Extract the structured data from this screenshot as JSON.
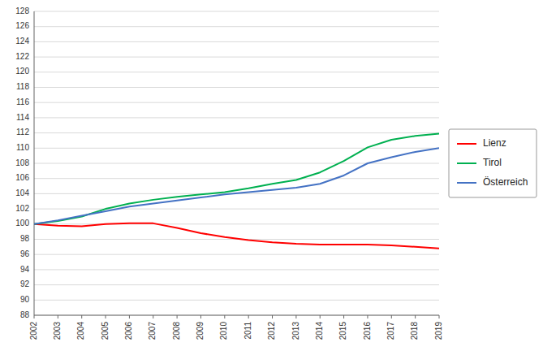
{
  "chart_data": {
    "type": "line",
    "x": [
      2002,
      2003,
      2004,
      2005,
      2006,
      2007,
      2008,
      2009,
      2010,
      2011,
      2012,
      2013,
      2014,
      2015,
      2016,
      2017,
      2018,
      2019
    ],
    "series": [
      {
        "name": "Lienz",
        "color": "#ff0000",
        "values": [
          100.0,
          99.8,
          99.7,
          100.0,
          100.1,
          100.1,
          99.5,
          98.8,
          98.3,
          97.9,
          97.6,
          97.4,
          97.3,
          97.3,
          97.3,
          97.2,
          97.0,
          96.8
        ]
      },
      {
        "name": "Tirol",
        "color": "#00b050",
        "values": [
          100.0,
          100.4,
          101.0,
          102.0,
          102.7,
          103.2,
          103.6,
          103.9,
          104.2,
          104.7,
          105.3,
          105.8,
          106.8,
          108.3,
          110.1,
          111.1,
          111.6,
          111.9
        ]
      },
      {
        "name": "Österreich",
        "color": "#4472c4",
        "values": [
          100.0,
          100.5,
          101.1,
          101.7,
          102.3,
          102.7,
          103.1,
          103.5,
          103.9,
          104.2,
          104.5,
          104.8,
          105.3,
          106.4,
          108.0,
          108.8,
          109.5,
          110.0
        ]
      }
    ],
    "xlim": [
      2002,
      2019
    ],
    "xticks": [
      2002,
      2003,
      2004,
      2005,
      2006,
      2007,
      2008,
      2009,
      2010,
      2011,
      2012,
      2013,
      2014,
      2015,
      2016,
      2017,
      2018,
      2019
    ],
    "ylim": [
      88,
      128
    ],
    "yticks": [
      88,
      90,
      92,
      94,
      96,
      98,
      100,
      102,
      104,
      106,
      108,
      110,
      112,
      114,
      116,
      118,
      120,
      122,
      124,
      126,
      128
    ],
    "grid": true,
    "legend": "right"
  }
}
